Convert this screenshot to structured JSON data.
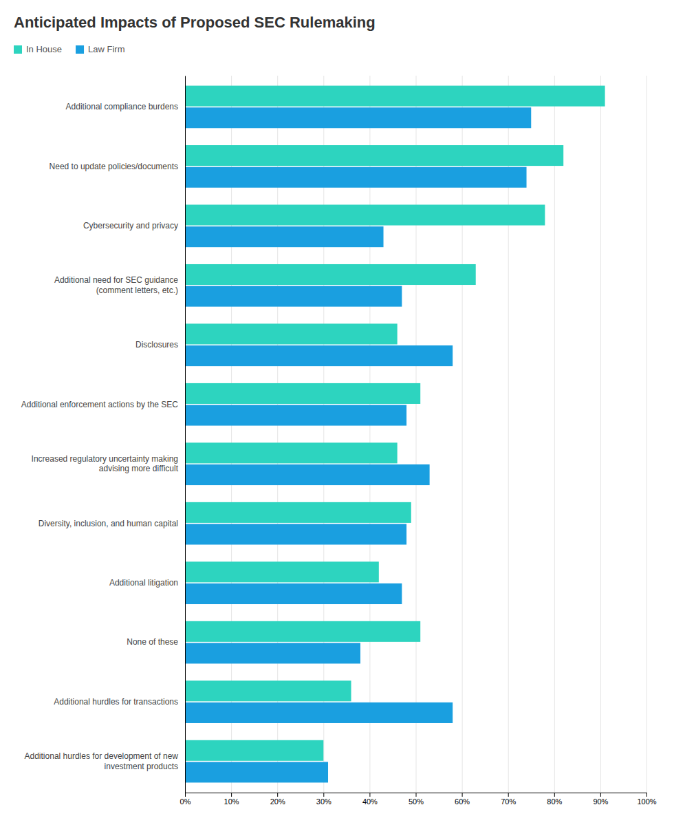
{
  "chart_data": {
    "type": "bar",
    "orientation": "horizontal",
    "title": "Anticipated Impacts of Proposed SEC Rulemaking",
    "categories": [
      "Additional compliance burdens",
      "Need to update policies/documents",
      "Cybersecurity and privacy",
      "Additional need for SEC guidance\n(comment letters, etc.)",
      "Disclosures",
      "Additional enforcement actions by the SEC",
      "Increased regulatory uncertainty making\nadvising more difficult",
      "Diversity, inclusion, and human capital",
      "Additional litigation",
      "None of these",
      "Additional hurdles for transactions",
      "Additional hurdles for development of new\ninvestment products"
    ],
    "series": [
      {
        "name": "In House",
        "color": "#2dd4bf",
        "values": [
          91,
          82,
          78,
          63,
          46,
          51,
          46,
          49,
          42,
          51,
          36,
          30
        ]
      },
      {
        "name": "Law Firm",
        "color": "#1a9fe0",
        "values": [
          75,
          74,
          43,
          47,
          58,
          48,
          53,
          48,
          47,
          38,
          58,
          31
        ]
      }
    ],
    "xlim": [
      0,
      100
    ],
    "xticks": [
      {
        "value": 0,
        "label": "0%"
      },
      {
        "value": 10,
        "label": "10%"
      },
      {
        "value": 20,
        "label": "20%"
      },
      {
        "value": 30,
        "label": "30%"
      },
      {
        "value": 40,
        "label": "40%"
      },
      {
        "value": 50,
        "label": "50%"
      },
      {
        "value": 60,
        "label": "60%"
      },
      {
        "value": 70,
        "label": "70%"
      },
      {
        "value": 80,
        "label": "80%"
      },
      {
        "value": 90,
        "label": "90%"
      },
      {
        "value": 100,
        "label": "100%"
      }
    ],
    "grid": true,
    "legend": "upper left"
  }
}
